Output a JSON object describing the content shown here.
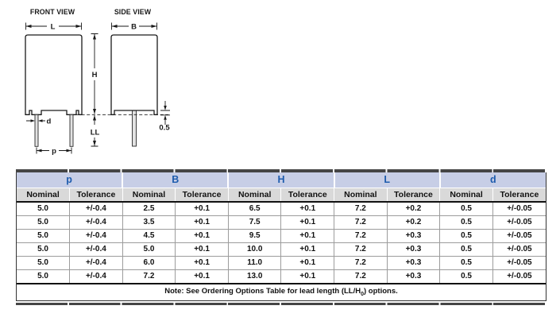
{
  "drawing": {
    "front_view": {
      "title": "FRONT VIEW",
      "labels": {
        "L": "L",
        "H": "H",
        "LL": "LL",
        "d": "d",
        "p": "p"
      }
    },
    "side_view": {
      "title": "SIDE VIEW",
      "labels": {
        "B": "B",
        "standoff": "0.5"
      }
    }
  },
  "table": {
    "groups": [
      "p",
      "B",
      "H",
      "L",
      "d"
    ],
    "sub_headers": [
      "Nominal",
      "Tolerance"
    ],
    "rows": [
      [
        "5.0",
        "+/-0.4",
        "2.5",
        "+0.1",
        "6.5",
        "+0.1",
        "7.2",
        "+0.2",
        "0.5",
        "+/-0.05"
      ],
      [
        "5.0",
        "+/-0.4",
        "3.5",
        "+0.1",
        "7.5",
        "+0.1",
        "7.2",
        "+0.2",
        "0.5",
        "+/-0.05"
      ],
      [
        "5.0",
        "+/-0.4",
        "4.5",
        "+0.1",
        "9.5",
        "+0.1",
        "7.2",
        "+0.3",
        "0.5",
        "+/-0.05"
      ],
      [
        "5.0",
        "+/-0.4",
        "5.0",
        "+0.1",
        "10.0",
        "+0.1",
        "7.2",
        "+0.3",
        "0.5",
        "+/-0.05"
      ],
      [
        "5.0",
        "+/-0.4",
        "6.0",
        "+0.1",
        "11.0",
        "+0.1",
        "7.2",
        "+0.3",
        "0.5",
        "+/-0.05"
      ],
      [
        "5.0",
        "+/-0.4",
        "7.2",
        "+0.1",
        "13.0",
        "+0.1",
        "7.2",
        "+0.3",
        "0.5",
        "+/-0.05"
      ]
    ],
    "note": {
      "prefix": "Note: See Ordering Options Table for lead length (LL/H",
      "subscript": "0",
      "suffix": ") options."
    },
    "colors": {
      "group_header_bg": "#c7cee6",
      "group_header_text": "#1d5bad",
      "subheader_bg": "#d9d9d9"
    }
  }
}
